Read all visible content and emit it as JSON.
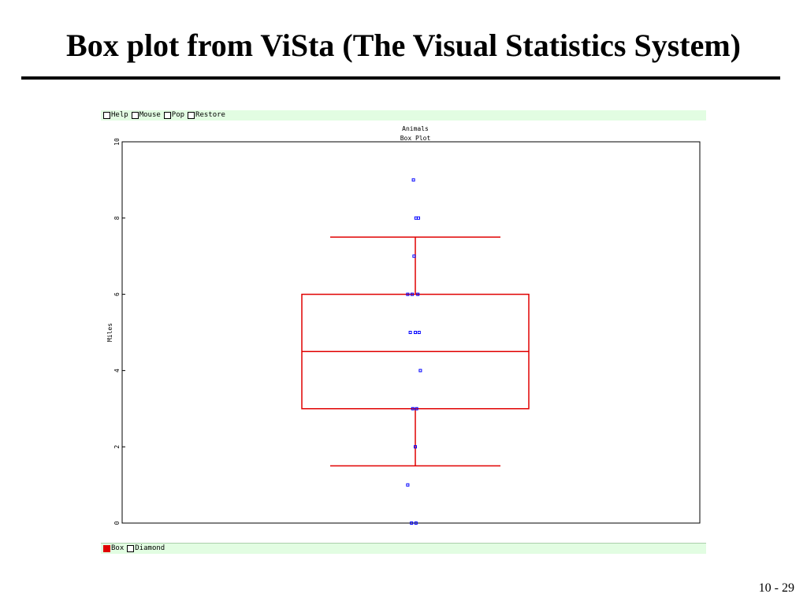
{
  "slide": {
    "title": "Box plot from ViSta (The Visual Statistics System)",
    "number": "10 - 29"
  },
  "top_menu": [
    {
      "label": "Help",
      "checked": false,
      "icon": "checkbox-icon"
    },
    {
      "label": "Mouse",
      "checked": false,
      "icon": "checkbox-icon"
    },
    {
      "label": "Pop",
      "checked": false,
      "icon": "checkbox-icon"
    },
    {
      "label": "Restore",
      "checked": false,
      "icon": "checkbox-icon"
    }
  ],
  "bottom_menu": [
    {
      "label": "Box",
      "checked": true,
      "icon": "checkbox-icon"
    },
    {
      "label": "Diamond",
      "checked": false,
      "icon": "checkbox-icon"
    }
  ],
  "colors": {
    "box": "#e00000",
    "points": "#0000ff",
    "toolbar_bg": "#e2fde2"
  },
  "chart_data": {
    "type": "box",
    "title": "Animals",
    "subtitle": "Box Plot",
    "xlabel": "",
    "ylabel": "Miles",
    "ylim": [
      0,
      10
    ],
    "yticks": [
      0,
      2,
      4,
      6,
      8,
      10
    ],
    "box": {
      "q1": 3,
      "median": 4.5,
      "q3": 6,
      "whisker_low": 1.5,
      "whisker_high": 7.5
    },
    "points": [
      {
        "x_offset": -0.3,
        "y": 9
      },
      {
        "x_offset": 0.1,
        "y": 8
      },
      {
        "x_offset": 0.5,
        "y": 8
      },
      {
        "x_offset": -0.2,
        "y": 7
      },
      {
        "x_offset": -1.2,
        "y": 6
      },
      {
        "x_offset": -0.5,
        "y": 6
      },
      {
        "x_offset": 0.4,
        "y": 6
      },
      {
        "x_offset": -0.8,
        "y": 5
      },
      {
        "x_offset": 0.0,
        "y": 5
      },
      {
        "x_offset": 0.6,
        "y": 5
      },
      {
        "x_offset": 0.8,
        "y": 4
      },
      {
        "x_offset": -0.4,
        "y": 3
      },
      {
        "x_offset": 0.2,
        "y": 3
      },
      {
        "x_offset": 0.0,
        "y": 2
      },
      {
        "x_offset": -1.2,
        "y": 1
      },
      {
        "x_offset": -0.6,
        "y": 0
      },
      {
        "x_offset": 0.1,
        "y": 0
      }
    ]
  }
}
